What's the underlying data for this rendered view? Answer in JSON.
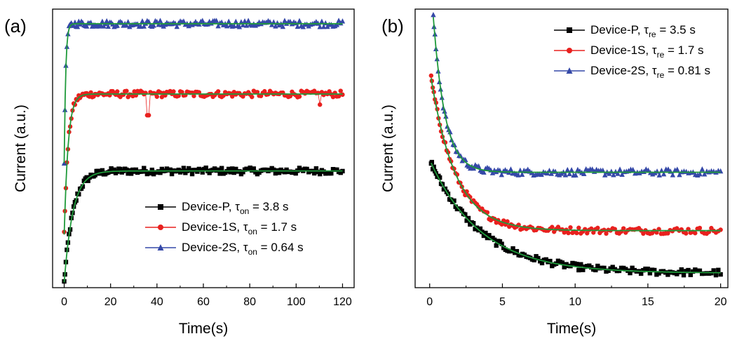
{
  "chart_data": [
    {
      "type": "scatter",
      "panel_label": "(a)",
      "xlabel": "Time(s)",
      "ylabel": "Current (a.u.)",
      "xlim": [
        -5,
        125
      ],
      "ylim": [
        0,
        1.05
      ],
      "xticks": [
        "0",
        "20",
        "40",
        "60",
        "80",
        "100",
        "120"
      ],
      "legend_position": "bottom-right",
      "fit_color": "#1f9a3a",
      "series": [
        {
          "name": "Device-P",
          "tau_symbol": "τ",
          "tau_sub": "on",
          "tau_value": "= 3.8 s",
          "color": "#000000",
          "marker": "square",
          "start": 0.02,
          "plateau": 0.44,
          "tau": 3.8,
          "t_start": 0,
          "spikes": []
        },
        {
          "name": "Device-1S",
          "tau_symbol": "τ",
          "tau_sub": "on",
          "tau_value": "= 1.7 s",
          "color": "#e8201e",
          "marker": "circle",
          "start": 0.2,
          "plateau": 0.73,
          "tau": 1.7,
          "t_start": 0,
          "spikes": [
            [
              36,
              0.65
            ],
            [
              110,
              0.69
            ]
          ]
        },
        {
          "name": "Device-2S",
          "tau_symbol": "τ",
          "tau_sub": "on",
          "tau_value": "= 0.64 s",
          "color": "#3548a8",
          "marker": "triangle",
          "start": 0.47,
          "plateau": 0.995,
          "tau": 0.64,
          "t_start": 0,
          "spikes": []
        }
      ]
    },
    {
      "type": "scatter",
      "panel_label": "(b)",
      "xlabel": "Time(s)",
      "ylabel": "Current (a.u.)",
      "xlim": [
        -1,
        20.5
      ],
      "ylim": [
        0,
        1.05
      ],
      "xticks": [
        "0",
        "5",
        "10",
        "15",
        "20"
      ],
      "legend_position": "top-right",
      "fit_color": "#1f9a3a",
      "series": [
        {
          "name": "Device-P",
          "tau_symbol": "τ",
          "tau_sub": "re",
          "tau_value": "= 3.5 s",
          "color": "#000000",
          "marker": "square",
          "start": 0.47,
          "plateau": 0.055,
          "tau": 3.5,
          "t_start": 0.1
        },
        {
          "name": "Device-1S",
          "tau_symbol": "τ",
          "tau_sub": "re",
          "tau_value": "= 1.7 s",
          "color": "#e8201e",
          "marker": "circle",
          "start": 0.79,
          "plateau": 0.215,
          "tau": 1.7,
          "t_start": 0.1
        },
        {
          "name": "Device-2S",
          "tau_symbol": "τ",
          "tau_sub": "re",
          "tau_value": "= 0.81 s",
          "color": "#3548a8",
          "marker": "triangle",
          "start": 1.02,
          "plateau": 0.435,
          "tau": 0.81,
          "t_start": 0.25
        }
      ]
    }
  ]
}
